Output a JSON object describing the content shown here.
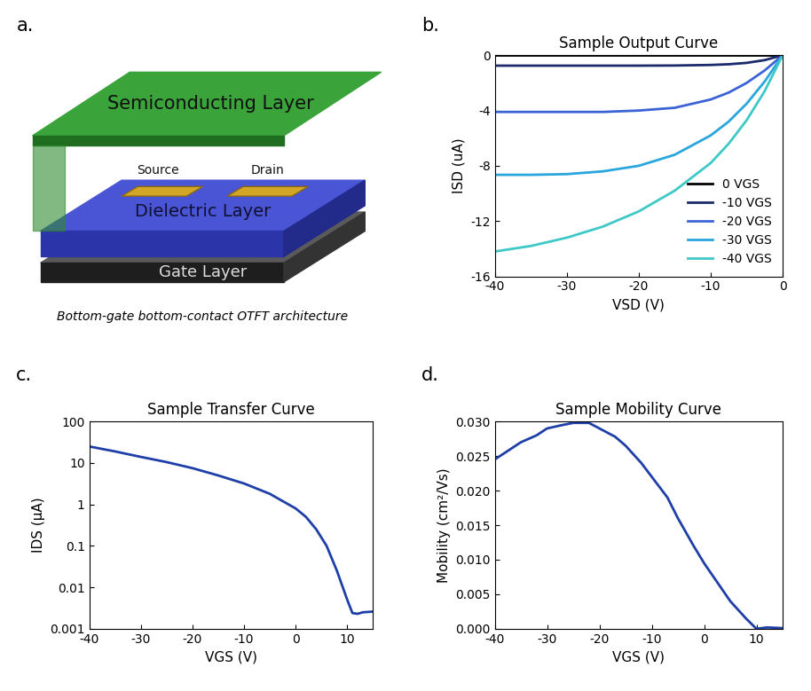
{
  "diagram": {
    "panel_label": "a.",
    "labels": {
      "semiconductor": "Semiconducting Layer",
      "source": "Source",
      "drain": "Drain",
      "dielectric": "Dielectric Layer",
      "gate": "Gate Layer"
    },
    "caption": "Bottom-gate bottom-contact OTFT architecture"
  },
  "chart_data": [
    {
      "panel_label": "b.",
      "type": "line",
      "title": "Sample Output Curve",
      "x_label": "VSD (V)",
      "y_label": "ISD (uA)",
      "x": [
        -40,
        -35,
        -30,
        -25,
        -20,
        -15,
        -10,
        -7.5,
        -5,
        -2.5,
        0
      ],
      "series": [
        {
          "name": "0 VGS",
          "color": "#000000",
          "values": [
            0,
            0,
            0,
            0,
            0,
            0,
            0,
            0,
            0,
            0,
            0
          ]
        },
        {
          "name": "-10 VGS",
          "color": "#1b2a6b",
          "values": [
            -0.75,
            -0.75,
            -0.75,
            -0.75,
            -0.75,
            -0.74,
            -0.7,
            -0.65,
            -0.55,
            -0.35,
            0
          ]
        },
        {
          "name": "-20 VGS",
          "color": "#3b63d6",
          "values": [
            -4.1,
            -4.1,
            -4.1,
            -4.1,
            -4.0,
            -3.8,
            -3.2,
            -2.7,
            -2.0,
            -1.1,
            0
          ]
        },
        {
          "name": "-30 VGS",
          "color": "#2aa6de",
          "values": [
            -8.65,
            -8.65,
            -8.6,
            -8.4,
            -8.0,
            -7.2,
            -5.8,
            -4.8,
            -3.5,
            -1.9,
            0
          ]
        },
        {
          "name": "-40 VGS",
          "color": "#3ec8c8",
          "values": [
            -14.2,
            -13.8,
            -13.2,
            -12.4,
            -11.3,
            -9.8,
            -7.8,
            -6.4,
            -4.7,
            -2.6,
            0
          ]
        }
      ],
      "xlim": [
        -40,
        0
      ],
      "ylim": [
        -16,
        0
      ],
      "xticks": [
        -40,
        -30,
        -20,
        -10,
        0
      ],
      "yticks": [
        -16,
        -12,
        -8,
        -4,
        0
      ],
      "legend": "lower right"
    },
    {
      "panel_label": "c.",
      "type": "line",
      "title": "Sample Transfer Curve",
      "x_label": "VGS (V)",
      "y_label": "IDS (µA)",
      "log": "y",
      "x": [
        -40,
        -35,
        -30,
        -25,
        -20,
        -15,
        -10,
        -5,
        0,
        2,
        4,
        6,
        8,
        10,
        11,
        12,
        13,
        15
      ],
      "series": [
        {
          "name": "IDS",
          "color": "#1f3fa8",
          "values": [
            25,
            19,
            14,
            10.5,
            7.5,
            5,
            3.2,
            1.8,
            0.8,
            0.5,
            0.25,
            0.1,
            0.025,
            0.005,
            0.0024,
            0.0023,
            0.0025,
            0.0026
          ]
        }
      ],
      "xlim": [
        -40,
        15
      ],
      "ylim": [
        0.001,
        100
      ],
      "xticks": [
        -40,
        -30,
        -20,
        -10,
        0,
        10
      ],
      "yticks": [
        0.001,
        0.01,
        0.1,
        1,
        10,
        100
      ]
    },
    {
      "panel_label": "d.",
      "type": "line",
      "title": "Sample Mobility Curve",
      "x_label": "VGS (V)",
      "y_label": "Mobility (cm²/Vs)",
      "x": [
        -40,
        -37,
        -35,
        -32,
        -30,
        -27,
        -25,
        -22,
        -20,
        -17,
        -15,
        -12,
        -10,
        -7,
        -5,
        -2,
        0,
        3,
        5,
        8,
        10,
        12,
        15
      ],
      "series": [
        {
          "name": "Mobility",
          "color": "#1f3fa8",
          "values": [
            0.0245,
            0.026,
            0.027,
            0.028,
            0.029,
            0.0295,
            0.0298,
            0.0298,
            0.029,
            0.0278,
            0.0265,
            0.024,
            0.022,
            0.019,
            0.016,
            0.012,
            0.0095,
            0.0062,
            0.004,
            0.0015,
            0.0,
            0.0002,
            0.0001
          ]
        }
      ],
      "xlim": [
        -40,
        15
      ],
      "ylim": [
        0,
        0.03
      ],
      "xticks": [
        -40,
        -30,
        -20,
        -10,
        0,
        10
      ],
      "yticks": [
        {
          "value": 0,
          "label": "0.000"
        },
        0.005,
        {
          "value": 0.01,
          "label": "0.010"
        },
        0.015,
        {
          "value": 0.02,
          "label": "0.020"
        },
        0.025,
        {
          "value": 0.03,
          "label": "0.030"
        }
      ]
    }
  ]
}
